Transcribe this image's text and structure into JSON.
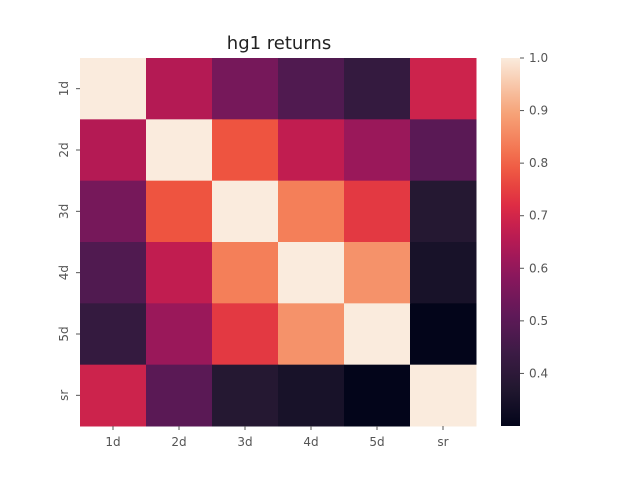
{
  "chart_data": {
    "type": "heatmap",
    "title": "hg1 returns",
    "xlabel": "",
    "ylabel": "",
    "x_categories": [
      "1d",
      "2d",
      "3d",
      "4d",
      "5d",
      "sr"
    ],
    "y_categories": [
      "1d",
      "2d",
      "3d",
      "4d",
      "5d",
      "sr"
    ],
    "values": [
      [
        1.0,
        0.65,
        0.55,
        0.48,
        0.42,
        0.69
      ],
      [
        0.65,
        1.0,
        0.78,
        0.67,
        0.61,
        0.5
      ],
      [
        0.55,
        0.78,
        1.0,
        0.84,
        0.74,
        0.38
      ],
      [
        0.48,
        0.67,
        0.84,
        1.0,
        0.87,
        0.35
      ],
      [
        0.42,
        0.61,
        0.74,
        0.87,
        1.0,
        0.3
      ],
      [
        0.69,
        0.5,
        0.38,
        0.35,
        0.3,
        1.0
      ]
    ],
    "colorbar": {
      "min": 0.3,
      "max": 1.0,
      "ticks": [
        0.4,
        0.5,
        0.6,
        0.7,
        0.8,
        0.9,
        1.0
      ],
      "tick_labels": [
        "0.4",
        "0.5",
        "0.6",
        "0.7",
        "0.8",
        "0.9",
        "1.0"
      ],
      "colormap": "rocket"
    },
    "grid": false
  }
}
